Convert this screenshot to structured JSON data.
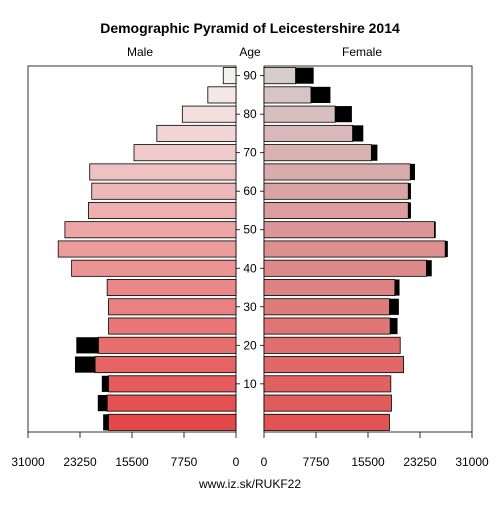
{
  "chart_data": {
    "type": "population-pyramid",
    "title": "Demographic Pyramid of Leicestershire 2014",
    "left_label": "Male",
    "center_label": "Age",
    "right_label": "Female",
    "source": "www.iz.sk/RUKF22",
    "age_ticks": [
      "10",
      "20",
      "30",
      "40",
      "50",
      "60",
      "70",
      "80",
      "90"
    ],
    "x_ticks_left": [
      "31000",
      "23250",
      "15500",
      "7750",
      "0"
    ],
    "x_ticks_right": [
      "0",
      "7750",
      "15500",
      "23250",
      "31000"
    ],
    "xlim": [
      0,
      31000
    ],
    "age_groups": [
      "0-4",
      "5-9",
      "10-14",
      "15-19",
      "20-24",
      "25-29",
      "30-34",
      "35-39",
      "40-44",
      "45-49",
      "50-54",
      "55-59",
      "60-64",
      "65-69",
      "70-74",
      "75-79",
      "80-84",
      "85-89",
      "90+"
    ],
    "series": [
      {
        "name": "Male",
        "values": [
          19000,
          19200,
          19000,
          21000,
          20500,
          19000,
          19000,
          19200,
          24500,
          26500,
          25500,
          22000,
          21500,
          21800,
          15200,
          11800,
          8000,
          4200,
          1900
        ],
        "excess": [
          800,
          1400,
          1000,
          3000,
          3300,
          0,
          0,
          0,
          0,
          0,
          0,
          0,
          0,
          0,
          0,
          0,
          0,
          0,
          0
        ]
      },
      {
        "name": "Female",
        "values": [
          18700,
          19000,
          18900,
          20800,
          20300,
          18800,
          18700,
          19500,
          24200,
          27000,
          25400,
          21500,
          21500,
          21800,
          16000,
          13200,
          10600,
          7000,
          4700
        ],
        "excess": [
          0,
          0,
          0,
          0,
          0,
          0,
          0,
          0,
          0,
          0,
          0,
          0,
          0,
          0,
          0,
          0,
          0,
          0,
          0
        ],
        "excess_outer": [
          0,
          0,
          0,
          0,
          0,
          1100,
          1400,
          700,
          800,
          400,
          200,
          400,
          400,
          700,
          900,
          1600,
          2500,
          2900,
          2700
        ]
      }
    ]
  }
}
